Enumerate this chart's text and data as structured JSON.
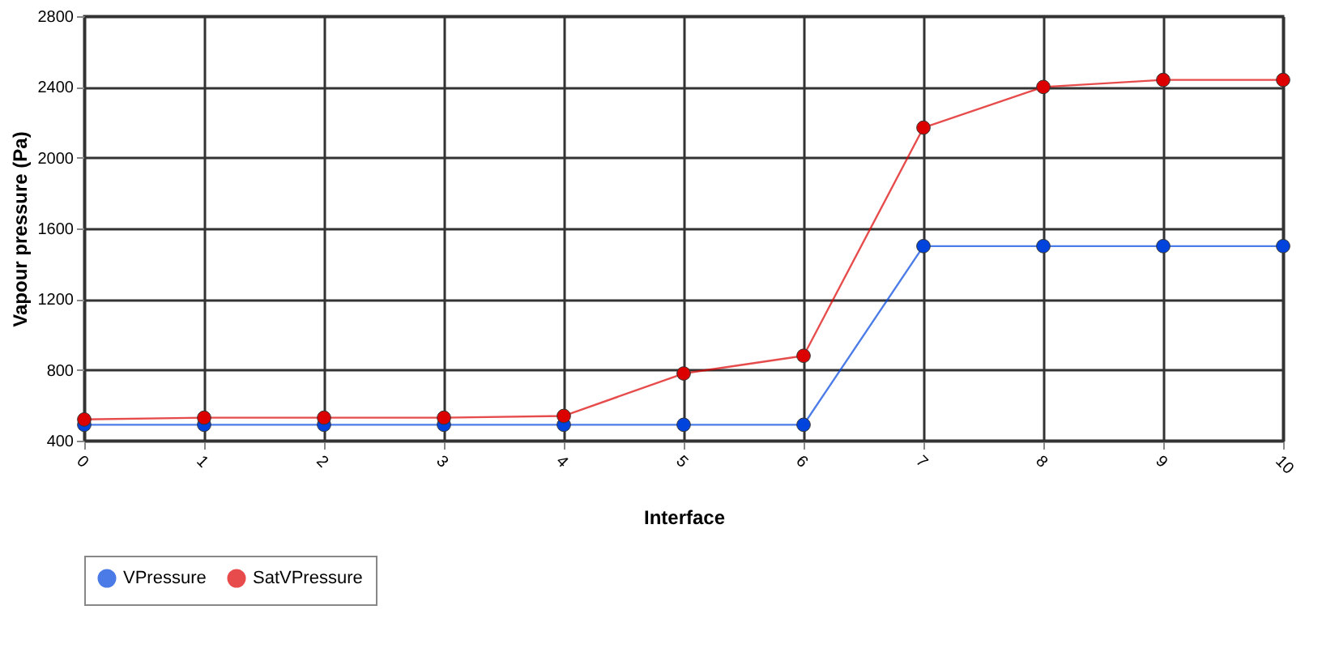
{
  "chart_data": {
    "type": "line",
    "xlabel": "Interface",
    "ylabel": "Vapour pressure (Pa)",
    "x": [
      0,
      1,
      2,
      3,
      4,
      5,
      6,
      7,
      8,
      9,
      10
    ],
    "series": [
      {
        "name": "VPressure",
        "color": "#0044dd",
        "values": [
          490,
          490,
          490,
          490,
          490,
          490,
          490,
          1500,
          1500,
          1500,
          1500
        ]
      },
      {
        "name": "SatVPressure",
        "color": "#dd0000",
        "values": [
          520,
          530,
          530,
          530,
          540,
          780,
          880,
          2170,
          2400,
          2440,
          2440
        ]
      }
    ],
    "xlim": [
      0,
      10
    ],
    "xticks": [
      0,
      1,
      2,
      3,
      4,
      5,
      6,
      7,
      8,
      9,
      10
    ],
    "ylim": [
      400,
      2800
    ],
    "yticks": [
      400,
      800,
      1200,
      1600,
      2000,
      2400,
      2800
    ],
    "grid": true,
    "legend": "bottom",
    "marker": "circle",
    "line_style": "solid"
  }
}
